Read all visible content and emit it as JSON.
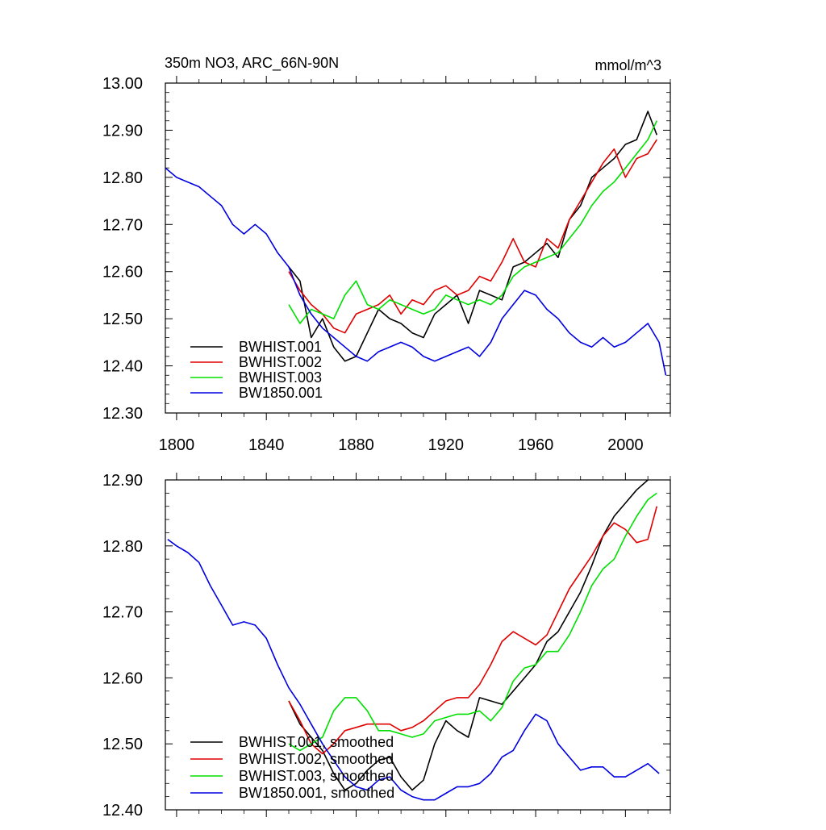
{
  "colors": {
    "BWHIST.001": "#000000",
    "BWHIST.002": "#e00000",
    "BWHIST.003": "#00e000",
    "BW1850.001": "#0000e0"
  },
  "chart_data": [
    {
      "type": "line",
      "title": "350m NO3, ARC_66N-90N",
      "units": "mmol/m^3",
      "xlim": [
        1795,
        2020
      ],
      "ylim": [
        12.3,
        13.0
      ],
      "xticks": [
        1800,
        1840,
        1880,
        1920,
        1960,
        2000
      ],
      "xtick_labels": [
        "1800",
        "1840",
        "1880",
        "1920",
        "1960",
        "2000"
      ],
      "yticks": [
        12.3,
        12.4,
        12.5,
        12.6,
        12.7,
        12.8,
        12.9,
        13.0
      ],
      "ytick_labels": [
        "12.30",
        "12.40",
        "12.50",
        "12.60",
        "12.70",
        "12.80",
        "12.90",
        "13.00"
      ],
      "legend": [
        "BWHIST.001",
        "BWHIST.002",
        "BWHIST.003",
        "BW1850.001"
      ],
      "legend_position": "bottom-left",
      "series": [
        {
          "name": "BWHIST.001",
          "x": [
            1850,
            1855,
            1860,
            1865,
            1870,
            1875,
            1880,
            1885,
            1890,
            1895,
            1900,
            1905,
            1910,
            1915,
            1920,
            1925,
            1930,
            1935,
            1940,
            1945,
            1950,
            1955,
            1960,
            1965,
            1970,
            1975,
            1980,
            1985,
            1990,
            1995,
            2000,
            2005,
            2010,
            2014
          ],
          "y": [
            12.61,
            12.58,
            12.46,
            12.5,
            12.44,
            12.41,
            12.42,
            12.47,
            12.52,
            12.5,
            12.49,
            12.47,
            12.46,
            12.51,
            12.53,
            12.55,
            12.49,
            12.56,
            12.55,
            12.54,
            12.61,
            12.62,
            12.64,
            12.66,
            12.63,
            12.71,
            12.74,
            12.8,
            12.82,
            12.84,
            12.87,
            12.88,
            12.94,
            12.89
          ]
        },
        {
          "name": "BWHIST.002",
          "x": [
            1850,
            1855,
            1860,
            1865,
            1870,
            1875,
            1880,
            1885,
            1890,
            1895,
            1900,
            1905,
            1910,
            1915,
            1920,
            1925,
            1930,
            1935,
            1940,
            1945,
            1950,
            1955,
            1960,
            1965,
            1970,
            1975,
            1980,
            1985,
            1990,
            1995,
            2000,
            2005,
            2010,
            2014
          ],
          "y": [
            12.6,
            12.56,
            12.53,
            12.51,
            12.48,
            12.47,
            12.51,
            12.52,
            12.53,
            12.55,
            12.51,
            12.54,
            12.53,
            12.56,
            12.57,
            12.55,
            12.56,
            12.59,
            12.58,
            12.62,
            12.67,
            12.62,
            12.61,
            12.67,
            12.65,
            12.71,
            12.75,
            12.79,
            12.83,
            12.86,
            12.8,
            12.84,
            12.85,
            12.88
          ]
        },
        {
          "name": "BWHIST.003",
          "x": [
            1850,
            1855,
            1860,
            1865,
            1870,
            1875,
            1880,
            1885,
            1890,
            1895,
            1900,
            1905,
            1910,
            1915,
            1920,
            1925,
            1930,
            1935,
            1940,
            1945,
            1950,
            1955,
            1960,
            1965,
            1970,
            1975,
            1980,
            1985,
            1990,
            1995,
            2000,
            2005,
            2010,
            2014
          ],
          "y": [
            12.53,
            12.49,
            12.52,
            12.51,
            12.5,
            12.55,
            12.58,
            12.53,
            12.52,
            12.54,
            12.53,
            12.52,
            12.51,
            12.52,
            12.55,
            12.54,
            12.53,
            12.54,
            12.53,
            12.55,
            12.59,
            12.61,
            12.62,
            12.63,
            12.64,
            12.67,
            12.7,
            12.74,
            12.77,
            12.79,
            12.82,
            12.85,
            12.88,
            12.92
          ]
        },
        {
          "name": "BW1850.001",
          "x": [
            1795,
            1800,
            1805,
            1810,
            1815,
            1820,
            1825,
            1830,
            1835,
            1840,
            1845,
            1850,
            1855,
            1860,
            1865,
            1870,
            1875,
            1880,
            1885,
            1890,
            1895,
            1900,
            1905,
            1910,
            1915,
            1920,
            1925,
            1930,
            1935,
            1940,
            1945,
            1950,
            1955,
            1960,
            1965,
            1970,
            1975,
            1980,
            1985,
            1990,
            1995,
            2000,
            2005,
            2010,
            2015,
            2018
          ],
          "y": [
            12.82,
            12.8,
            12.79,
            12.78,
            12.76,
            12.74,
            12.7,
            12.68,
            12.7,
            12.68,
            12.64,
            12.61,
            12.55,
            12.51,
            12.48,
            12.46,
            12.44,
            12.42,
            12.41,
            12.43,
            12.44,
            12.45,
            12.44,
            12.42,
            12.41,
            12.42,
            12.43,
            12.44,
            12.42,
            12.45,
            12.5,
            12.53,
            12.56,
            12.55,
            12.52,
            12.5,
            12.47,
            12.45,
            12.44,
            12.46,
            12.44,
            12.45,
            12.47,
            12.49,
            12.45,
            12.38
          ]
        }
      ]
    },
    {
      "type": "line",
      "title": "",
      "xlim": [
        1795,
        2020
      ],
      "ylim": [
        12.4,
        12.9
      ],
      "xticks": [
        1800,
        1840,
        1880,
        1920,
        1960,
        2000
      ],
      "yticks": [
        12.4,
        12.5,
        12.6,
        12.7,
        12.8,
        12.9
      ],
      "ytick_labels": [
        "12.40",
        "12.50",
        "12.60",
        "12.70",
        "12.80",
        "12.90"
      ],
      "legend": [
        "BWHIST.001, smoothed",
        "BWHIST.002, smoothed",
        "BWHIST.003, smoothed",
        "BW1850.001, smoothed"
      ],
      "legend_position": "bottom-left",
      "series": [
        {
          "name": "BWHIST.001, smoothed",
          "x": [
            1850,
            1855,
            1860,
            1865,
            1870,
            1875,
            1880,
            1885,
            1890,
            1895,
            1900,
            1905,
            1910,
            1915,
            1920,
            1925,
            1930,
            1935,
            1940,
            1945,
            1950,
            1955,
            1960,
            1965,
            1970,
            1975,
            1980,
            1985,
            1990,
            1995,
            2000,
            2005,
            2010
          ],
          "y": [
            12.565,
            12.53,
            12.51,
            12.49,
            12.455,
            12.43,
            12.44,
            12.46,
            12.475,
            12.48,
            12.45,
            12.43,
            12.445,
            12.5,
            12.535,
            12.52,
            12.51,
            12.57,
            12.565,
            12.56,
            12.58,
            12.6,
            12.62,
            12.655,
            12.67,
            12.7,
            12.73,
            12.77,
            12.815,
            12.845,
            12.865,
            12.885,
            12.9
          ]
        },
        {
          "name": "BWHIST.002, smoothed",
          "x": [
            1850,
            1855,
            1860,
            1865,
            1870,
            1875,
            1880,
            1885,
            1890,
            1895,
            1900,
            1905,
            1910,
            1915,
            1920,
            1925,
            1930,
            1935,
            1940,
            1945,
            1950,
            1955,
            1960,
            1965,
            1970,
            1975,
            1980,
            1985,
            1990,
            1995,
            2000,
            2005,
            2010,
            2014
          ],
          "y": [
            12.565,
            12.535,
            12.5,
            12.485,
            12.5,
            12.52,
            12.525,
            12.53,
            12.53,
            12.53,
            12.52,
            12.525,
            12.535,
            12.55,
            12.565,
            12.57,
            12.57,
            12.59,
            12.62,
            12.655,
            12.67,
            12.66,
            12.65,
            12.665,
            12.7,
            12.735,
            12.76,
            12.785,
            12.815,
            12.835,
            12.825,
            12.805,
            12.81,
            12.86
          ]
        },
        {
          "name": "BWHIST.003, smoothed",
          "x": [
            1850,
            1855,
            1860,
            1865,
            1870,
            1875,
            1880,
            1885,
            1890,
            1895,
            1900,
            1905,
            1910,
            1915,
            1920,
            1925,
            1930,
            1935,
            1940,
            1945,
            1950,
            1955,
            1960,
            1965,
            1970,
            1975,
            1980,
            1985,
            1990,
            1995,
            2000,
            2005,
            2010,
            2014
          ],
          "y": [
            12.5,
            12.49,
            12.5,
            12.51,
            12.55,
            12.57,
            12.57,
            12.55,
            12.52,
            12.52,
            12.515,
            12.51,
            12.515,
            12.535,
            12.54,
            12.545,
            12.545,
            12.55,
            12.535,
            12.555,
            12.595,
            12.615,
            12.62,
            12.64,
            12.64,
            12.665,
            12.7,
            12.74,
            12.765,
            12.78,
            12.815,
            12.845,
            12.87,
            12.88
          ]
        },
        {
          "name": "BW1850.001, smoothed",
          "x": [
            1796,
            1800,
            1805,
            1810,
            1815,
            1820,
            1825,
            1830,
            1835,
            1840,
            1845,
            1850,
            1855,
            1860,
            1865,
            1870,
            1875,
            1880,
            1885,
            1890,
            1895,
            1900,
            1905,
            1910,
            1915,
            1920,
            1925,
            1930,
            1935,
            1940,
            1945,
            1950,
            1955,
            1960,
            1965,
            1970,
            1975,
            1980,
            1985,
            1990,
            1995,
            2000,
            2005,
            2010,
            2015
          ],
          "y": [
            12.81,
            12.8,
            12.79,
            12.775,
            12.74,
            12.71,
            12.68,
            12.685,
            12.68,
            12.66,
            12.62,
            12.585,
            12.56,
            12.53,
            12.5,
            12.475,
            12.45,
            12.435,
            12.43,
            12.445,
            12.45,
            12.43,
            12.42,
            12.415,
            12.415,
            12.425,
            12.435,
            12.435,
            12.44,
            12.455,
            12.48,
            12.49,
            12.52,
            12.545,
            12.535,
            12.5,
            12.48,
            12.46,
            12.465,
            12.465,
            12.45,
            12.45,
            12.46,
            12.47,
            12.455
          ]
        }
      ]
    }
  ]
}
